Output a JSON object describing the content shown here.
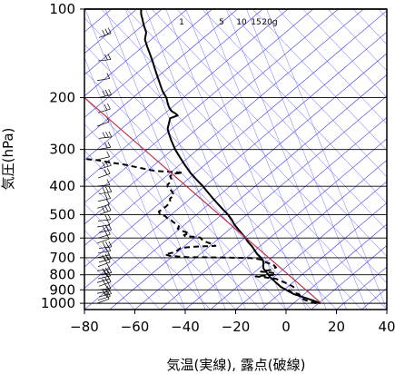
{
  "chart_data": {
    "type": "line",
    "title": "",
    "xlabel": "気温(実線), 露点(破線)",
    "ylabel": "気圧(hPa)",
    "xlim": [
      -80,
      40
    ],
    "ylim": [
      1050,
      100
    ],
    "y_scale": "log",
    "x_ticks": [
      -80,
      -60,
      -40,
      -20,
      0,
      20,
      40
    ],
    "x_tick_labels": [
      "−80",
      "−60",
      "−40",
      "−20",
      "0",
      "20",
      "40"
    ],
    "y_ticks": [
      100,
      200,
      300,
      400,
      500,
      600,
      700,
      800,
      900,
      1000
    ],
    "y_tick_labels": [
      "100",
      "200",
      "300",
      "400",
      "500",
      "600",
      "700",
      "800",
      "900",
      "1000"
    ],
    "mixing_ratio_labels": [
      "1",
      "5",
      "10",
      "15",
      "20g"
    ],
    "series": [
      {
        "role": "temperature",
        "style": "solid",
        "color": "#000000",
        "points": [
          [
            13.8,
            1000
          ],
          [
            11,
            980
          ],
          [
            8,
            960
          ],
          [
            3,
            930
          ],
          [
            0,
            900
          ],
          [
            -2,
            880
          ],
          [
            -4,
            850
          ],
          [
            -6,
            820
          ],
          [
            -7,
            800
          ],
          [
            -8,
            780
          ],
          [
            -9,
            760
          ],
          [
            -9,
            740
          ],
          [
            -9,
            720
          ],
          [
            -10,
            700
          ],
          [
            -11.5,
            680
          ],
          [
            -12.5,
            660
          ],
          [
            -13.5,
            640
          ],
          [
            -15,
            620
          ],
          [
            -16,
            600
          ],
          [
            -17.5,
            580
          ],
          [
            -19,
            560
          ],
          [
            -20.5,
            540
          ],
          [
            -21.5,
            520
          ],
          [
            -23,
            500
          ],
          [
            -25,
            480
          ],
          [
            -27,
            460
          ],
          [
            -29,
            440
          ],
          [
            -31,
            420
          ],
          [
            -33,
            400
          ],
          [
            -35.5,
            380
          ],
          [
            -38,
            360
          ],
          [
            -40,
            340
          ],
          [
            -42,
            320
          ],
          [
            -44,
            300
          ],
          [
            -45.5,
            280
          ],
          [
            -46.5,
            265
          ],
          [
            -47,
            255
          ],
          [
            -46.5,
            245
          ],
          [
            -46,
            235
          ],
          [
            -43,
            230
          ],
          [
            -44,
            226
          ],
          [
            -45.5,
            222
          ],
          [
            -46.5,
            215
          ],
          [
            -47,
            208
          ],
          [
            -47.5,
            200
          ],
          [
            -49,
            190
          ],
          [
            -50,
            180
          ],
          [
            -51,
            170
          ],
          [
            -52,
            160
          ],
          [
            -53,
            150
          ],
          [
            -54,
            142
          ],
          [
            -55,
            135
          ],
          [
            -56,
            127
          ],
          [
            -55.5,
            120
          ],
          [
            -56.5,
            113
          ],
          [
            -57,
            108
          ],
          [
            -57.5,
            104
          ],
          [
            -57.5,
            100
          ]
        ]
      },
      {
        "role": "dewpoint",
        "style": "dashed",
        "color": "#000000",
        "points": [
          [
            12,
            1000
          ],
          [
            9,
            985
          ],
          [
            7,
            970
          ],
          [
            6,
            950
          ],
          [
            5,
            930
          ],
          [
            2,
            915
          ],
          [
            1,
            905
          ],
          [
            2,
            895
          ],
          [
            3,
            880
          ],
          [
            1,
            860
          ],
          [
            -2,
            840
          ],
          [
            -4,
            825
          ],
          [
            -9,
            815
          ],
          [
            -12,
            810
          ],
          [
            -9,
            805
          ],
          [
            -5,
            800
          ],
          [
            -4,
            790
          ],
          [
            -10,
            780
          ],
          [
            -6,
            770
          ],
          [
            -4,
            755
          ],
          [
            -5,
            740
          ],
          [
            -8,
            725
          ],
          [
            -10,
            710
          ],
          [
            -14,
            702
          ],
          [
            -20,
            700
          ],
          [
            -30,
            698
          ],
          [
            -39,
            697
          ],
          [
            -46,
            690
          ],
          [
            -48,
            682
          ],
          [
            -46,
            676
          ],
          [
            -44,
            670
          ],
          [
            -43,
            660
          ],
          [
            -42,
            650
          ],
          [
            -39,
            645
          ],
          [
            -36,
            642
          ],
          [
            -32,
            640
          ],
          [
            -28,
            638
          ],
          [
            -29,
            630
          ],
          [
            -31,
            622
          ],
          [
            -33,
            612
          ],
          [
            -34,
            598
          ],
          [
            -37,
            594
          ],
          [
            -40,
            592
          ],
          [
            -40.5,
            586
          ],
          [
            -38.5,
            578
          ],
          [
            -41,
            568
          ],
          [
            -43,
            558
          ],
          [
            -42.5,
            548
          ],
          [
            -43.5,
            538
          ],
          [
            -45,
            528
          ],
          [
            -45.5,
            522
          ],
          [
            -47,
            515
          ],
          [
            -48,
            505
          ],
          [
            -50,
            498
          ],
          [
            -50.5,
            488
          ],
          [
            -49,
            478
          ],
          [
            -47.5,
            468
          ],
          [
            -46.5,
            458
          ],
          [
            -46,
            450
          ],
          [
            -46,
            440
          ],
          [
            -44.5,
            430
          ],
          [
            -45,
            420
          ],
          [
            -46,
            410
          ],
          [
            -47,
            402
          ],
          [
            -47,
            395
          ],
          [
            -46,
            388
          ],
          [
            -45.5,
            378
          ],
          [
            -46,
            370
          ],
          [
            -45,
            363
          ],
          [
            -41,
            360
          ],
          [
            -47,
            357
          ],
          [
            -52,
            355
          ],
          [
            -57,
            348
          ],
          [
            -64,
            338
          ],
          [
            -70,
            332
          ],
          [
            -75,
            326
          ],
          [
            -80,
            323
          ],
          [
            -80,
            323
          ]
        ]
      },
      {
        "role": "reference-parcel",
        "style": "solid",
        "color": "#c0304a",
        "points": [
          [
            14,
            1000
          ],
          [
            -80,
            200
          ]
        ]
      }
    ]
  }
}
